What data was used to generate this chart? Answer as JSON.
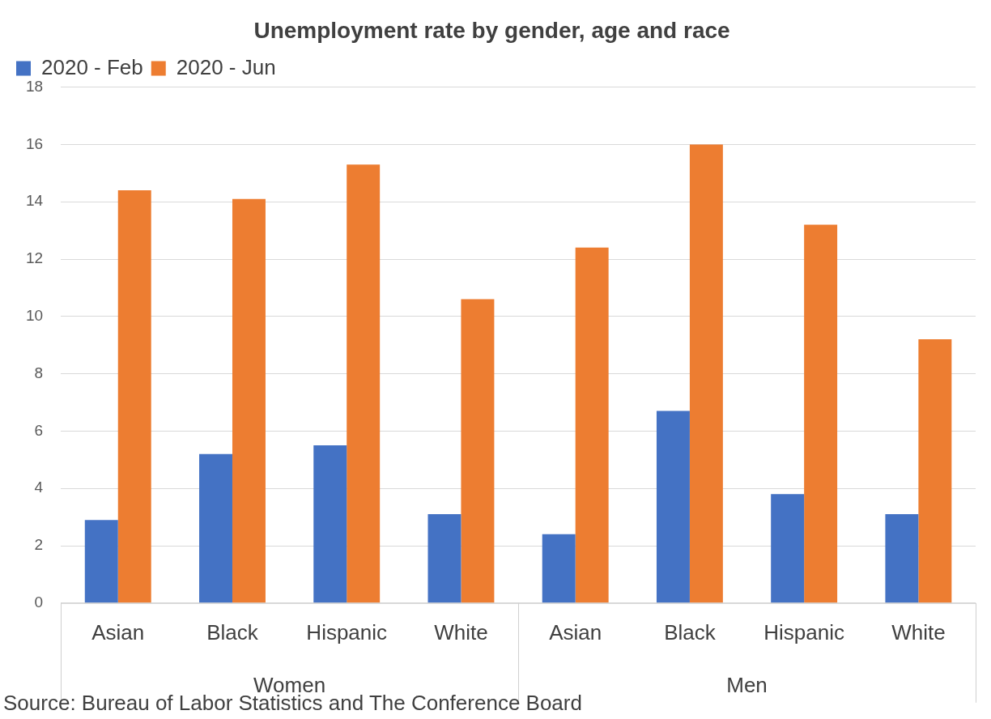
{
  "chart_data": {
    "type": "bar",
    "title": "Unemployment rate by gender, age and race",
    "categories": [
      "Asian",
      "Black",
      "Hispanic",
      "White",
      "Asian",
      "Black",
      "Hispanic",
      "White"
    ],
    "series": [
      {
        "name": "2020 - Feb",
        "color": "#4472c4",
        "values": [
          2.9,
          5.2,
          5.5,
          3.1,
          2.4,
          6.7,
          3.8,
          3.1
        ]
      },
      {
        "name": "2020 - Jun",
        "color": "#ed7d31",
        "values": [
          14.4,
          14.1,
          15.3,
          10.6,
          12.4,
          16.0,
          13.2,
          9.2
        ]
      }
    ],
    "ylim": [
      0,
      18
    ],
    "yticks": [
      0,
      2,
      4,
      6,
      8,
      10,
      12,
      14,
      16,
      18
    ],
    "grid": "y",
    "legend": "top left",
    "annotations": [
      "Women",
      "Men",
      "Source: Bureau of Labor Statistics and The Conference Board"
    ]
  }
}
